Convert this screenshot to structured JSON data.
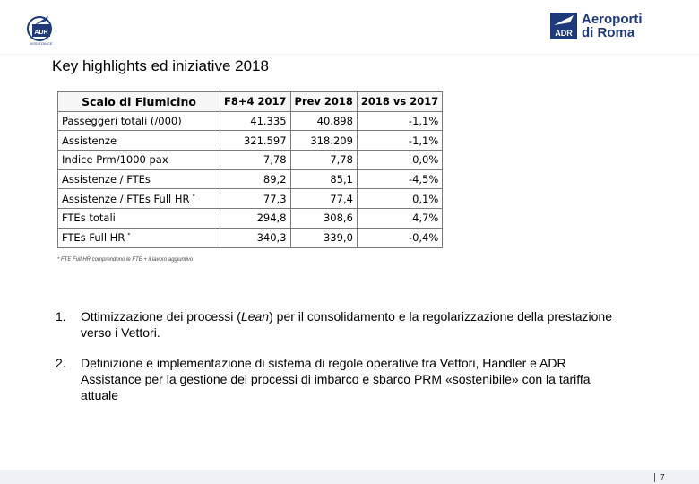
{
  "logo_left": {
    "text": "ADR",
    "subtext": "ASSISTANCE",
    "color": "#1e3a7a"
  },
  "logo_right": {
    "line1": "Aeroporti",
    "line2": "di Roma",
    "mark_text": "ADR",
    "color": "#1e3a7a"
  },
  "title": "Key highlights ed iniziative 2018",
  "table": {
    "headers": [
      "Scalo di Fiumicino",
      "F8+4 2017",
      "Prev 2018",
      "2018 vs 2017"
    ],
    "rows": [
      {
        "label": "Passeggeri totali (/000)",
        "note": "",
        "v1": "41.335",
        "v2": "40.898",
        "v3": "-1,1%"
      },
      {
        "label": "Assistenze",
        "note": "",
        "v1": "321.597",
        "v2": "318.209",
        "v3": "-1,1%"
      },
      {
        "label": "Indice Prm/1000 pax",
        "note": "",
        "v1": "7,78",
        "v2": "7,78",
        "v3": "0,0%"
      },
      {
        "label": "Assistenze / FTEs",
        "note": "",
        "v1": "89,2",
        "v2": "85,1",
        "v3": "-4,5%"
      },
      {
        "label": "Assistenze / FTEs Full HR",
        "note": "*",
        "v1": "77,3",
        "v2": "77,4",
        "v3": "0,1%"
      },
      {
        "label": "FTEs totali",
        "note": "",
        "v1": "294,8",
        "v2": "308,6",
        "v3": "4,7%"
      },
      {
        "label": "FTEs Full HR",
        "note": "*",
        "v1": "340,3",
        "v2": "339,0",
        "v3": "-0,4%"
      }
    ]
  },
  "footnote": "* FTE Full HR comprendono le FTE + il lavoro aggiuntivo",
  "points": [
    {
      "number": "1.",
      "before": "Ottimizzazione dei processi (",
      "em": "Lean",
      "after": ") per il consolidamento e la regolarizzazione della prestazione verso i Vettori."
    },
    {
      "number": "2.",
      "before": "Definizione  e implementazione di sistema di regole operative tra Vettori, Handler e ADR Assistance per la gestione dei processi di imbarco e sbarco PRM «sostenibile» con la tariffa attuale",
      "em": "",
      "after": ""
    }
  ],
  "page_number": "7"
}
